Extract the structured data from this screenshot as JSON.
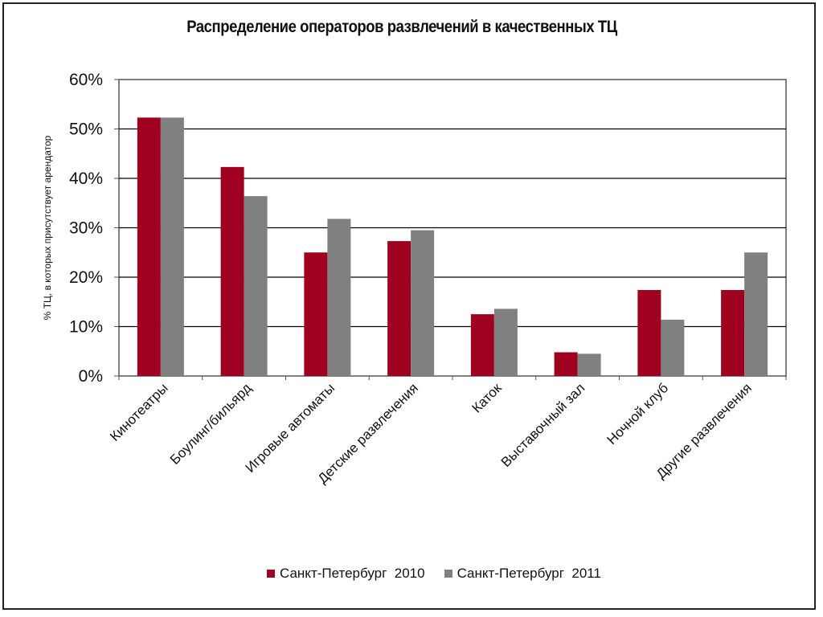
{
  "chart_data": {
    "type": "bar",
    "title": "Распределение операторов развлечений в качественных ТЦ",
    "ylabel": "% ТЦ, в которых присутствует арендатор",
    "xlabel": "",
    "ylim": [
      0,
      60
    ],
    "yticks": [
      "0%",
      "10%",
      "20%",
      "30%",
      "40%",
      "50%",
      "60%"
    ],
    "grid": true,
    "legend_position": "bottom",
    "categories": [
      "Кинотеатры",
      "Боулинг/бильярд",
      "Игровые автоматы",
      "Детские развлечения",
      "Каток",
      "Выставочный зал",
      "Ночной клуб",
      "Другие развлечения"
    ],
    "series": [
      {
        "name": "Санкт-Петербург  2010",
        "color": "#a0001f",
        "values": [
          52.3,
          42.3,
          25.0,
          27.3,
          12.5,
          4.8,
          17.4,
          17.4
        ]
      },
      {
        "name": "Санкт-Петербург  2011",
        "color": "#808080",
        "values": [
          52.3,
          36.4,
          31.8,
          29.5,
          13.6,
          4.5,
          11.4,
          25.0
        ]
      }
    ]
  }
}
